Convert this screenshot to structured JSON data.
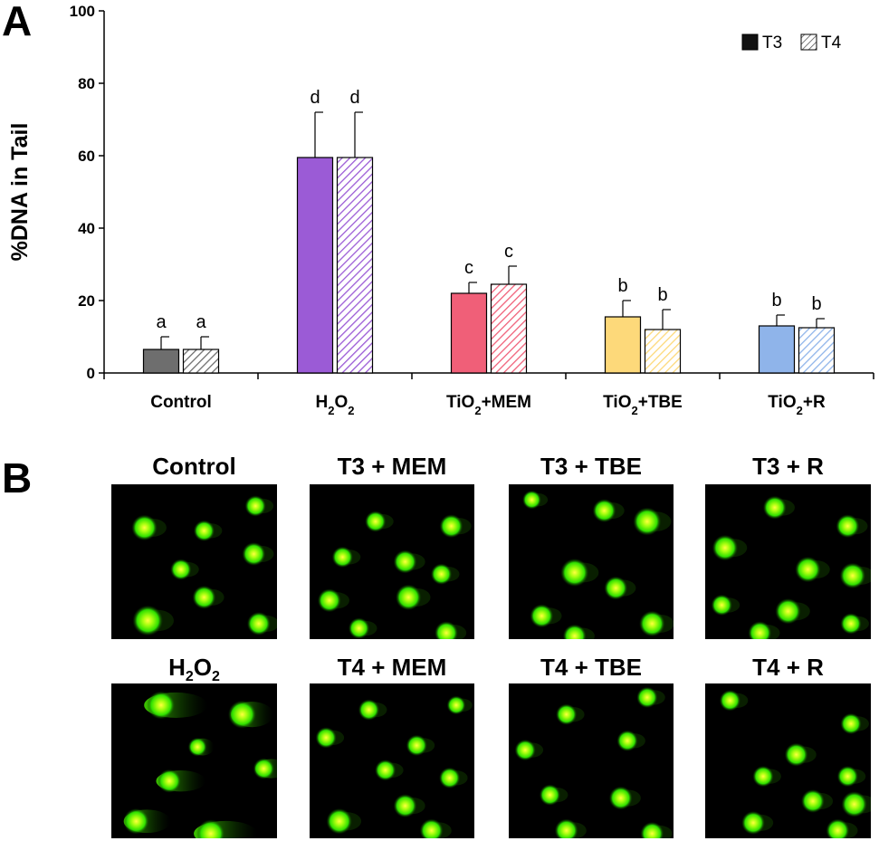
{
  "panel_a_letter": "A",
  "panel_b_letter": "B",
  "chart_data": {
    "type": "bar",
    "ylabel": "%DNA in Tail",
    "ylim": [
      0,
      100
    ],
    "yticks": [
      0,
      20,
      40,
      60,
      80,
      100
    ],
    "categories": [
      {
        "label": "Control",
        "html": "Control"
      },
      {
        "label": "H2O2",
        "html": "H<tspan baseline-shift='sub' font-size='13'>2</tspan>O<tspan baseline-shift='sub' font-size='13'>2</tspan>"
      },
      {
        "label": "TiO2+MEM",
        "html": "TiO<tspan baseline-shift='sub' font-size='13'>2</tspan>+MEM"
      },
      {
        "label": "TiO2+TBE",
        "html": "TiO<tspan baseline-shift='sub' font-size='13'>2</tspan>+TBE"
      },
      {
        "label": "TiO2+R",
        "html": "TiO<tspan baseline-shift='sub' font-size='13'>2</tspan>+R"
      }
    ],
    "colors": [
      "#6e6e6e",
      "#9b5bd6",
      "#f05f78",
      "#fdd97a",
      "#8fb4ea"
    ],
    "series": [
      {
        "name": "T3",
        "pattern": "solid",
        "values": [
          6.5,
          59.5,
          22,
          15.5,
          13
        ],
        "errors": [
          3.5,
          12.5,
          3,
          4.5,
          3
        ],
        "labels": [
          "a",
          "d",
          "c",
          "b",
          "b"
        ]
      },
      {
        "name": "T4",
        "pattern": "hatched",
        "values": [
          6.5,
          59.5,
          24.5,
          12,
          12.5
        ],
        "errors": [
          3.5,
          12.5,
          5,
          5.5,
          2.5
        ],
        "labels": [
          "a",
          "d",
          "c",
          "b",
          "b"
        ]
      }
    ],
    "legend_position": "top-right",
    "grid": false
  },
  "images": [
    {
      "title": "Control",
      "type": "normal",
      "spots": [
        [
          0.2,
          0.28,
          1.1
        ],
        [
          0.56,
          0.3,
          0.9
        ],
        [
          0.87,
          0.14,
          0.9
        ],
        [
          0.42,
          0.55,
          0.9
        ],
        [
          0.86,
          0.45,
          1.0
        ],
        [
          0.56,
          0.73,
          1.0
        ],
        [
          0.22,
          0.88,
          1.3
        ],
        [
          0.89,
          0.9,
          1.0
        ]
      ]
    },
    {
      "title": "T3 + MEM",
      "type": "normal",
      "spots": [
        [
          0.4,
          0.24,
          0.9
        ],
        [
          0.86,
          0.27,
          1.0
        ],
        [
          0.2,
          0.47,
          0.9
        ],
        [
          0.58,
          0.5,
          1.0
        ],
        [
          0.8,
          0.58,
          0.9
        ],
        [
          0.6,
          0.73,
          1.1
        ],
        [
          0.12,
          0.75,
          1.0
        ],
        [
          0.3,
          0.93,
          0.9
        ],
        [
          0.83,
          0.96,
          1.0
        ]
      ]
    },
    {
      "title": "T3 + TBE",
      "type": "normal",
      "spots": [
        [
          0.14,
          0.1,
          0.8
        ],
        [
          0.58,
          0.17,
          1.0
        ],
        [
          0.84,
          0.24,
          1.2
        ],
        [
          0.4,
          0.57,
          1.2
        ],
        [
          0.65,
          0.67,
          1.0
        ],
        [
          0.2,
          0.85,
          1.0
        ],
        [
          0.87,
          0.9,
          1.1
        ],
        [
          0.4,
          0.98,
          1.0
        ]
      ]
    },
    {
      "title": "T3 + R",
      "type": "normal",
      "spots": [
        [
          0.42,
          0.15,
          1.0
        ],
        [
          0.86,
          0.27,
          1.0
        ],
        [
          0.12,
          0.41,
          1.1
        ],
        [
          0.62,
          0.55,
          1.1
        ],
        [
          0.89,
          0.59,
          1.1
        ],
        [
          0.1,
          0.78,
          0.9
        ],
        [
          0.5,
          0.82,
          1.1
        ],
        [
          0.33,
          0.96,
          1.0
        ],
        [
          0.88,
          0.9,
          0.9
        ]
      ]
    },
    {
      "title": "H2O2",
      "type": "damaged",
      "spots": [
        [
          0.3,
          0.14,
          1.2,
          3.0
        ],
        [
          0.79,
          0.2,
          1.2,
          2.0
        ],
        [
          0.52,
          0.41,
          0.8,
          1.6
        ],
        [
          0.92,
          0.55,
          0.9,
          2.0
        ],
        [
          0.35,
          0.63,
          1.0,
          2.8
        ],
        [
          0.15,
          0.89,
          1.1,
          2.4
        ],
        [
          0.6,
          0.97,
          1.2,
          3.0
        ]
      ]
    },
    {
      "title": "T4 + MEM",
      "type": "normal",
      "spots": [
        [
          0.36,
          0.17,
          0.9
        ],
        [
          0.89,
          0.14,
          0.8
        ],
        [
          0.1,
          0.35,
          0.9
        ],
        [
          0.65,
          0.4,
          0.9
        ],
        [
          0.46,
          0.56,
          0.9
        ],
        [
          0.85,
          0.61,
          0.9
        ],
        [
          0.58,
          0.79,
          1.0
        ],
        [
          0.18,
          0.89,
          1.1
        ],
        [
          0.74,
          0.95,
          1.0
        ]
      ]
    },
    {
      "title": "T4 + TBE",
      "type": "normal",
      "spots": [
        [
          0.84,
          0.09,
          0.9
        ],
        [
          0.35,
          0.2,
          0.9
        ],
        [
          0.72,
          0.37,
          0.9
        ],
        [
          0.1,
          0.43,
          0.9
        ],
        [
          0.25,
          0.72,
          0.9
        ],
        [
          0.68,
          0.74,
          1.0
        ],
        [
          0.35,
          0.95,
          1.0
        ],
        [
          0.87,
          0.97,
          1.0
        ]
      ]
    },
    {
      "title": "T4 + R",
      "type": "normal",
      "spots": [
        [
          0.15,
          0.11,
          0.9
        ],
        [
          0.88,
          0.26,
          0.9
        ],
        [
          0.55,
          0.46,
          1.0
        ],
        [
          0.35,
          0.6,
          0.9
        ],
        [
          0.86,
          0.6,
          0.9
        ],
        [
          0.65,
          0.76,
          1.0
        ],
        [
          0.9,
          0.78,
          1.1
        ],
        [
          0.29,
          0.9,
          1.0
        ],
        [
          0.8,
          0.95,
          1.0
        ]
      ]
    }
  ]
}
